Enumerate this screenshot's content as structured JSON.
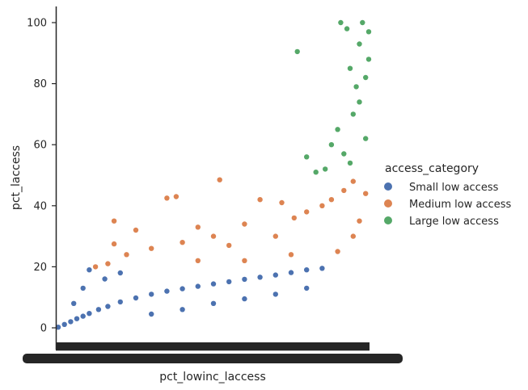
{
  "chart_data": {
    "type": "scatter",
    "xlabel": "pct_lowinc_laccess",
    "ylabel": "pct_laccess",
    "ylim": [
      -5,
      105
    ],
    "yticks": [
      "0",
      "20",
      "40",
      "60",
      "80",
      "100"
    ],
    "xticks_note": "x tick labels are overlapping and unreadable (categorical strip axis)",
    "legend": {
      "title": "access_category",
      "placement": "right",
      "entries": [
        {
          "label": "Small low access",
          "color": "#4c72b0"
        },
        {
          "label": "Medium low access",
          "color": "#dd8452"
        },
        {
          "label": "Large low access",
          "color": "#55a868"
        }
      ]
    },
    "series": [
      {
        "name": "Small low access",
        "color": "#4c72b0",
        "points": [
          [
            0.0,
            0.2
          ],
          [
            0.02,
            1.1
          ],
          [
            0.04,
            2.0
          ],
          [
            0.06,
            3.0
          ],
          [
            0.08,
            3.8
          ],
          [
            0.1,
            4.7
          ],
          [
            0.13,
            6.0
          ],
          [
            0.16,
            7.0
          ],
          [
            0.2,
            8.5
          ],
          [
            0.25,
            9.8
          ],
          [
            0.3,
            11.0
          ],
          [
            0.35,
            12.0
          ],
          [
            0.4,
            12.8
          ],
          [
            0.45,
            13.6
          ],
          [
            0.5,
            14.4
          ],
          [
            0.55,
            15.1
          ],
          [
            0.6,
            15.9
          ],
          [
            0.65,
            16.6
          ],
          [
            0.7,
            17.3
          ],
          [
            0.75,
            18.1
          ],
          [
            0.8,
            19.0
          ],
          [
            0.85,
            19.5
          ],
          [
            0.05,
            8.0
          ],
          [
            0.08,
            13.0
          ],
          [
            0.1,
            19.0
          ],
          [
            0.15,
            16.0
          ],
          [
            0.2,
            18.0
          ],
          [
            0.3,
            4.5
          ],
          [
            0.4,
            6.0
          ],
          [
            0.5,
            8.0
          ],
          [
            0.6,
            9.5
          ],
          [
            0.7,
            11.0
          ],
          [
            0.8,
            13.0
          ]
        ]
      },
      {
        "name": "Medium low access",
        "color": "#dd8452",
        "points": [
          [
            0.12,
            20.0
          ],
          [
            0.16,
            21.0
          ],
          [
            0.18,
            27.5
          ],
          [
            0.18,
            35.0
          ],
          [
            0.22,
            24.0
          ],
          [
            0.25,
            32.0
          ],
          [
            0.3,
            26.0
          ],
          [
            0.35,
            42.5
          ],
          [
            0.38,
            43.0
          ],
          [
            0.4,
            28.0
          ],
          [
            0.45,
            33.0
          ],
          [
            0.5,
            30.0
          ],
          [
            0.52,
            48.5
          ],
          [
            0.55,
            27.0
          ],
          [
            0.6,
            34.0
          ],
          [
            0.65,
            42.0
          ],
          [
            0.7,
            30.0
          ],
          [
            0.72,
            41.0
          ],
          [
            0.76,
            36.0
          ],
          [
            0.8,
            38.0
          ],
          [
            0.85,
            40.0
          ],
          [
            0.88,
            42.0
          ],
          [
            0.92,
            45.0
          ],
          [
            0.95,
            48.0
          ],
          [
            0.97,
            35.0
          ],
          [
            0.99,
            44.0
          ],
          [
            0.45,
            22.0
          ],
          [
            0.6,
            22.0
          ],
          [
            0.75,
            24.0
          ],
          [
            0.9,
            25.0
          ],
          [
            0.95,
            30.0
          ]
        ]
      },
      {
        "name": "Large low access",
        "color": "#55a868",
        "points": [
          [
            0.77,
            90.5
          ],
          [
            0.8,
            56.0
          ],
          [
            0.83,
            51.0
          ],
          [
            0.86,
            52.0
          ],
          [
            0.88,
            60.0
          ],
          [
            0.9,
            65.0
          ],
          [
            0.91,
            100.0
          ],
          [
            0.93,
            98.0
          ],
          [
            0.94,
            85.0
          ],
          [
            0.95,
            70.0
          ],
          [
            0.96,
            79.0
          ],
          [
            0.97,
            93.0
          ],
          [
            0.98,
            100.0
          ],
          [
            0.99,
            62.0
          ],
          [
            1.0,
            88.0
          ],
          [
            0.92,
            57.0
          ],
          [
            0.94,
            54.0
          ],
          [
            0.97,
            74.0
          ],
          [
            0.99,
            82.0
          ],
          [
            1.0,
            97.0
          ]
        ]
      }
    ]
  }
}
